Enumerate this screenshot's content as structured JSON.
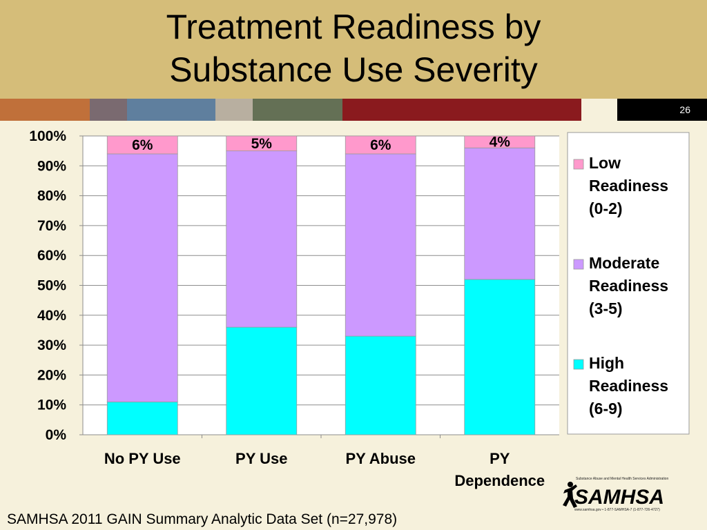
{
  "slide": {
    "title_line1": "Treatment Readiness by",
    "title_line2": "Substance Use Severity",
    "slide_number": "26",
    "footer": "SAMHSA 2011 GAIN Summary Analytic Data Set (n=27,978)",
    "logo_text": "SAMHSA",
    "logo_tagline": "Substance Abuse and Mental Health Services Administration",
    "logo_contact": "www.samhsa.gov • 1-877-SAMHSA-7 (1-877-726-4727)",
    "strip_colors": [
      "#c0703a",
      "#7a6a70",
      "#5f7f9e",
      "#b8afa0",
      "#647055",
      "#8a1a1e",
      "#f6f1dc",
      "#000000"
    ]
  },
  "chart_data": {
    "type": "bar",
    "stacked": true,
    "categories": [
      "No PY Use",
      "PY Use",
      "PY Abuse",
      "PY Dependence"
    ],
    "series": [
      {
        "name": "High Readiness (6-9)",
        "values": [
          11,
          36,
          33,
          52
        ],
        "color": "#00ffff"
      },
      {
        "name": "Moderate Readiness (3-5)",
        "values": [
          83,
          59,
          61,
          44
        ],
        "color": "#cc99ff"
      },
      {
        "name": "Low Readiness (0-2)",
        "values": [
          6,
          5,
          6,
          4
        ],
        "color": "#ff99cc"
      }
    ],
    "data_labels": [
      "6%",
      "5%",
      "6%",
      "4%"
    ],
    "legend_entries": [
      [
        "Low",
        "Readiness",
        "(0-2)"
      ],
      [
        "Moderate",
        "Readiness",
        "(3-5)"
      ],
      [
        "High",
        "Readiness",
        "(6-9)"
      ]
    ],
    "y_tick_labels": [
      "0%",
      "10%",
      "20%",
      "30%",
      "40%",
      "50%",
      "60%",
      "70%",
      "80%",
      "90%",
      "100%"
    ],
    "x_tick_labels": [
      [
        "No PY Use"
      ],
      [
        "PY Use"
      ],
      [
        "PY Abuse"
      ],
      [
        "PY",
        "Dependence"
      ]
    ],
    "ylim": [
      0,
      100
    ],
    "grid": true,
    "legend_position": "right"
  }
}
